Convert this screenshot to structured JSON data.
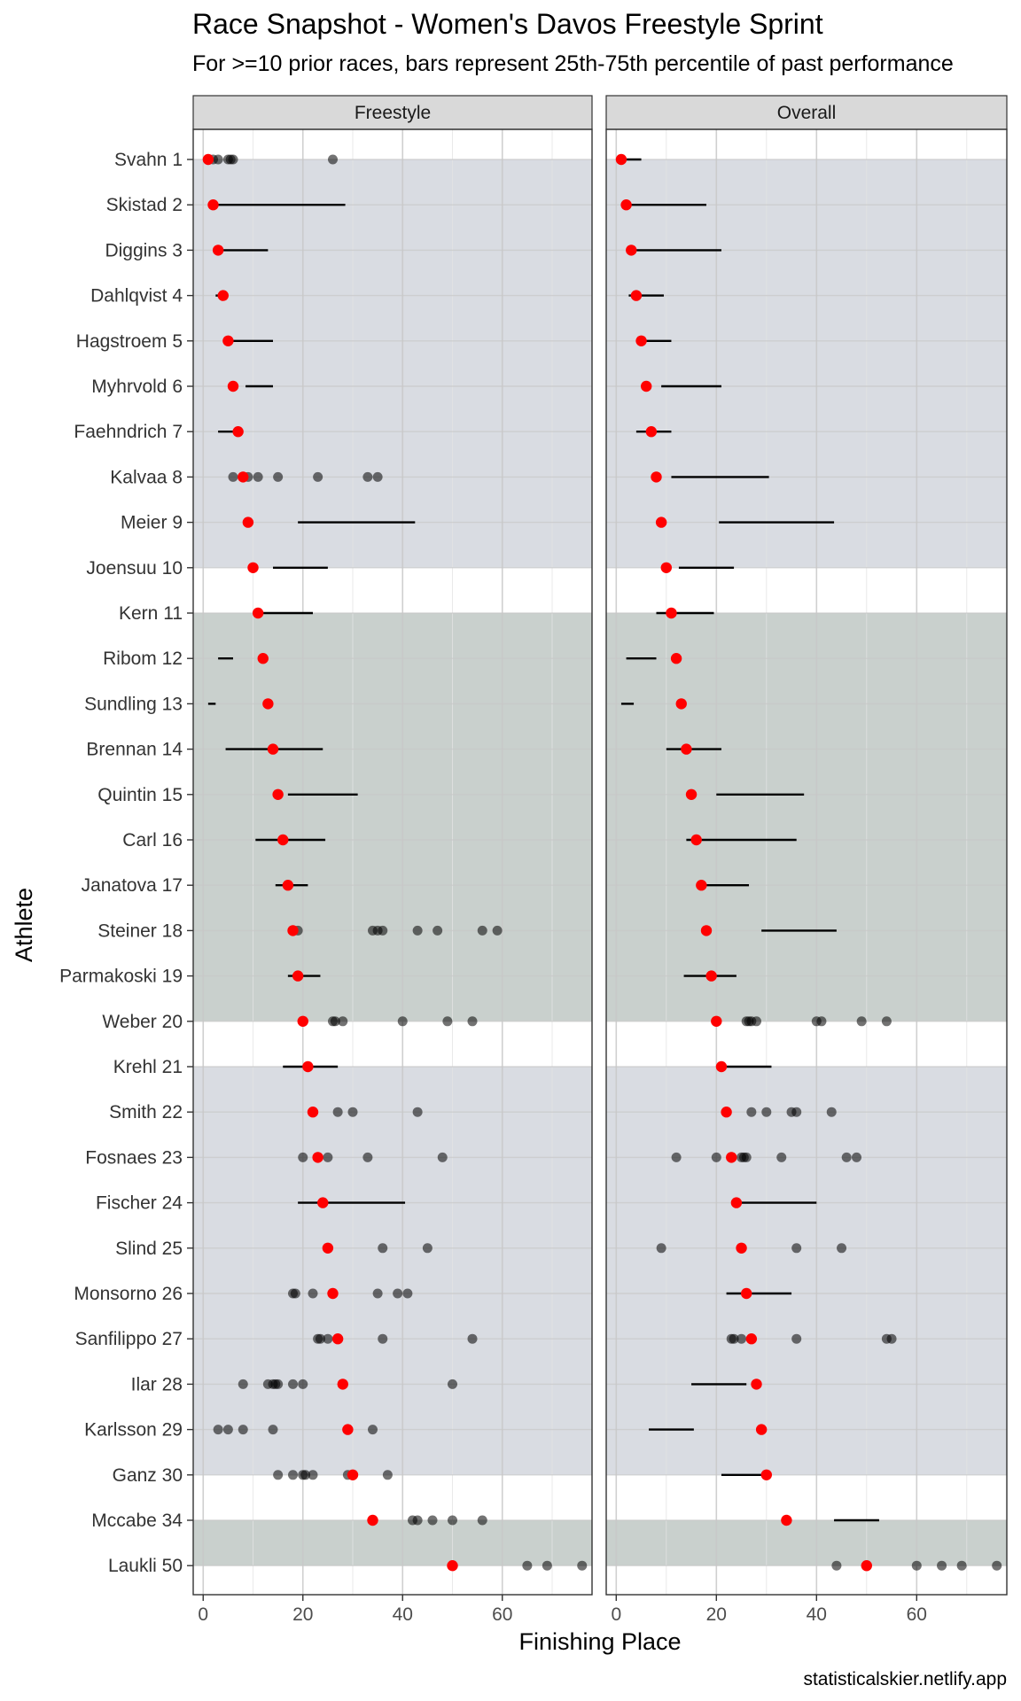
{
  "title": "Race Snapshot -  Women's Davos Freestyle Sprint",
  "subtitle": "For >=10 prior races, bars represent 25th-75th percentile of past performance",
  "caption": "statisticalskier.netlify.app",
  "colors": {
    "band_light": "#d9dce2",
    "band_dark": "#c9d0cd",
    "current": "#ff0000",
    "past_point": "#000000",
    "strip_fill": "#d9d9d9"
  },
  "chart_data": {
    "type": "scatter",
    "xlabel": "Finishing Place",
    "ylabel": "Athlete",
    "xlim": [
      -2,
      78
    ],
    "x_ticks": [
      0,
      20,
      40,
      60
    ],
    "panels": [
      "Freestyle",
      "Overall"
    ],
    "bands": [
      {
        "from_rank": 1,
        "to_rank": 10,
        "shade": "light"
      },
      {
        "from_rank": 11,
        "to_rank": 20,
        "shade": "dark"
      },
      {
        "from_rank": 21,
        "to_rank": 30,
        "shade": "light"
      },
      {
        "from_rank": 31,
        "to_rank": 32,
        "shade": "dark"
      }
    ],
    "athletes": [
      {
        "label": "Svahn 1",
        "place": 1,
        "freestyle": {
          "points": [
            2,
            3,
            5,
            5.5,
            6,
            26
          ]
        },
        "overall": {
          "bar": [
            1,
            5
          ]
        }
      },
      {
        "label": "Skistad 2",
        "place": 2,
        "freestyle": {
          "bar": [
            2,
            28.5
          ]
        },
        "overall": {
          "bar": [
            2,
            18
          ]
        }
      },
      {
        "label": "Diggins 3",
        "place": 3,
        "freestyle": {
          "bar": [
            2,
            13
          ]
        },
        "overall": {
          "bar": [
            2,
            21
          ]
        }
      },
      {
        "label": "Dahlqvist 4",
        "place": 4,
        "freestyle": {
          "bar": [
            2.5,
            5
          ]
        },
        "overall": {
          "bar": [
            2.5,
            9.5
          ]
        }
      },
      {
        "label": "Hagstroem 5",
        "place": 5,
        "freestyle": {
          "bar": [
            4,
            14
          ]
        },
        "overall": {
          "bar": [
            4,
            11
          ]
        }
      },
      {
        "label": "Myhrvold 6",
        "place": 6,
        "freestyle": {
          "bar": [
            8.5,
            14
          ]
        },
        "overall": {
          "bar": [
            9,
            21
          ]
        }
      },
      {
        "label": "Faehndrich 7",
        "place": 7,
        "freestyle": {
          "bar": [
            3,
            7
          ]
        },
        "overall": {
          "bar": [
            4,
            11
          ]
        }
      },
      {
        "label": "Kalvaa 8",
        "place": 8,
        "freestyle": {
          "points": [
            6,
            8,
            9,
            11,
            15,
            23,
            33,
            35
          ]
        },
        "overall": {
          "bar": [
            11,
            30.5
          ]
        }
      },
      {
        "label": "Meier 9",
        "place": 9,
        "freestyle": {
          "bar": [
            19,
            42.5
          ]
        },
        "overall": {
          "bar": [
            20.5,
            43.5
          ]
        }
      },
      {
        "label": "Joensuu 10",
        "place": 10,
        "freestyle": {
          "bar": [
            14,
            25
          ]
        },
        "overall": {
          "bar": [
            12.5,
            23.5
          ]
        }
      },
      {
        "label": "Kern 11",
        "place": 11,
        "freestyle": {
          "bar": [
            10,
            22
          ]
        },
        "overall": {
          "bar": [
            8,
            19.5
          ]
        }
      },
      {
        "label": "Ribom 12",
        "place": 12,
        "freestyle": {
          "bar": [
            3,
            6
          ]
        },
        "overall": {
          "bar": [
            2,
            8
          ]
        }
      },
      {
        "label": "Sundling 13",
        "place": 13,
        "freestyle": {
          "bar": [
            1,
            2.5
          ]
        },
        "overall": {
          "bar": [
            1,
            3.5
          ]
        }
      },
      {
        "label": "Brennan 14",
        "place": 14,
        "freestyle": {
          "bar": [
            4.5,
            24
          ]
        },
        "overall": {
          "bar": [
            10,
            21
          ]
        }
      },
      {
        "label": "Quintin 15",
        "place": 15,
        "freestyle": {
          "bar": [
            17,
            31
          ]
        },
        "overall": {
          "bar": [
            20,
            37.5
          ]
        }
      },
      {
        "label": "Carl 16",
        "place": 16,
        "freestyle": {
          "bar": [
            10.5,
            24.5
          ]
        },
        "overall": {
          "bar": [
            14,
            36
          ]
        }
      },
      {
        "label": "Janatova 17",
        "place": 17,
        "freestyle": {
          "bar": [
            14.5,
            21
          ]
        },
        "overall": {
          "bar": [
            17,
            26.5
          ]
        }
      },
      {
        "label": "Steiner 18",
        "place": 18,
        "freestyle": {
          "points": [
            18,
            19,
            34,
            35,
            36,
            43,
            47,
            56,
            59
          ]
        },
        "overall": {
          "bar": [
            29,
            44
          ]
        }
      },
      {
        "label": "Parmakoski 19",
        "place": 19,
        "freestyle": {
          "bar": [
            17,
            23.5
          ]
        },
        "overall": {
          "bar": [
            13.5,
            24
          ]
        }
      },
      {
        "label": "Weber 20",
        "place": 20,
        "freestyle": {
          "points": [
            26,
            26.5,
            28,
            40,
            49,
            54
          ]
        },
        "overall": {
          "points": [
            26,
            26.5,
            27,
            28,
            40,
            41,
            49,
            54
          ]
        }
      },
      {
        "label": "Krehl 21",
        "place": 21,
        "freestyle": {
          "bar": [
            16,
            27
          ]
        },
        "overall": {
          "bar": [
            20,
            31
          ]
        }
      },
      {
        "label": "Smith 22",
        "place": 22,
        "freestyle": {
          "points": [
            27,
            30,
            43
          ]
        },
        "overall": {
          "points": [
            27,
            30,
            35,
            36,
            43
          ]
        }
      },
      {
        "label": "Fosnaes 23",
        "place": 23,
        "freestyle": {
          "points": [
            20,
            25,
            33,
            48
          ]
        },
        "overall": {
          "points": [
            12,
            20,
            23,
            25,
            25.5,
            26,
            33,
            46,
            48
          ]
        }
      },
      {
        "label": "Fischer 24",
        "place": 24,
        "freestyle": {
          "bar": [
            19,
            40.5
          ]
        },
        "overall": {
          "bar": [
            24,
            40
          ]
        }
      },
      {
        "label": "Slind 25",
        "place": 25,
        "freestyle": {
          "points": [
            36,
            45
          ]
        },
        "overall": {
          "points": [
            9,
            36,
            45
          ]
        }
      },
      {
        "label": "Monsorno 26",
        "place": 26,
        "freestyle": {
          "points": [
            18,
            18.5,
            22,
            35,
            39,
            41
          ]
        },
        "overall": {
          "bar": [
            22,
            35
          ]
        }
      },
      {
        "label": "Sanfilippo 27",
        "place": 27,
        "freestyle": {
          "points": [
            23,
            23.5,
            25,
            36,
            54
          ]
        },
        "overall": {
          "points": [
            23,
            23.5,
            25,
            36,
            54,
            55
          ]
        }
      },
      {
        "label": "Ilar 28",
        "place": 28,
        "freestyle": {
          "points": [
            8,
            13,
            14,
            14.5,
            15,
            18,
            20,
            50
          ]
        },
        "overall": {
          "bar": [
            15,
            26
          ]
        }
      },
      {
        "label": "Karlsson 29",
        "place": 29,
        "freestyle": {
          "points": [
            3,
            5,
            8,
            14,
            34
          ]
        },
        "overall": {
          "bar": [
            6.5,
            15.5
          ]
        }
      },
      {
        "label": "Ganz 30",
        "place": 30,
        "freestyle": {
          "points": [
            15,
            18,
            20,
            20.5,
            22,
            29,
            30,
            37
          ]
        },
        "overall": {
          "bar": [
            21,
            30
          ]
        }
      },
      {
        "label": "Mccabe 34",
        "place": 34,
        "freestyle": {
          "points": [
            42,
            43,
            46,
            50,
            56
          ]
        },
        "overall": {
          "bar": [
            43.5,
            52.5
          ]
        }
      },
      {
        "label": "Laukli 50",
        "place": 50,
        "freestyle": {
          "points": [
            65,
            69,
            76
          ]
        },
        "overall": {
          "points": [
            44,
            60,
            65,
            69,
            76
          ]
        }
      }
    ]
  }
}
